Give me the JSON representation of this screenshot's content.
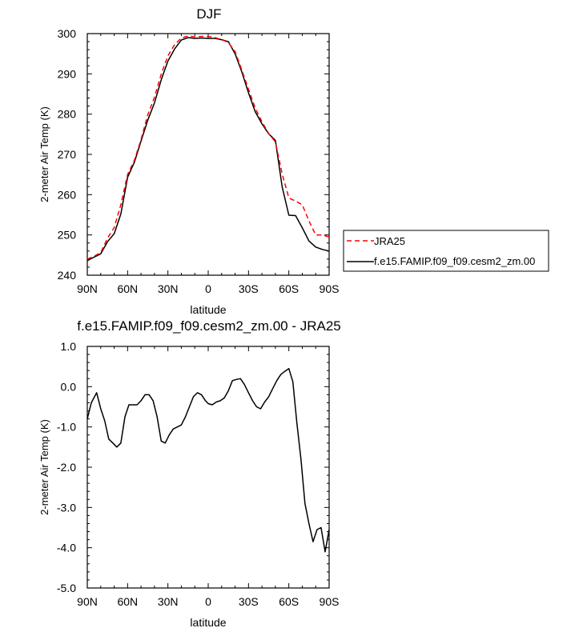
{
  "chart_data": [
    {
      "type": "line",
      "title": "DJF",
      "xlabel": "latitude",
      "ylabel": "2-meter Air Temp (K)",
      "xticks": [
        "90N",
        "60N",
        "30N",
        "0",
        "30S",
        "60S",
        "90S"
      ],
      "yticks": [
        "240",
        "250",
        "260",
        "270",
        "280",
        "290",
        "300"
      ],
      "xlim": [
        90,
        -90
      ],
      "ylim": [
        240,
        300
      ],
      "legend": {
        "placement": "right",
        "entries": [
          "JRA25",
          "f.e15.FAMIP.f09_f09.cesm2_zm.00"
        ]
      },
      "series": [
        {
          "name": "JRA25",
          "style": "dashed",
          "color": "#ff0000",
          "x": [
            90,
            85,
            80,
            75,
            70,
            65,
            60,
            55,
            50,
            45,
            40,
            35,
            30,
            25,
            20,
            15,
            10,
            5,
            0,
            -5,
            -10,
            -15,
            -20,
            -25,
            -30,
            -35,
            -40,
            -45,
            -50,
            -55,
            -60,
            -65,
            -70,
            -75,
            -80,
            -85,
            -90
          ],
          "y": [
            244.0,
            244.7,
            245.6,
            249.2,
            251.8,
            257.5,
            265.0,
            268.5,
            273.7,
            279.8,
            284.2,
            289.9,
            294.5,
            297.3,
            298.9,
            299.4,
            299.2,
            299.3,
            299.3,
            299.0,
            298.5,
            297.8,
            295.5,
            291.0,
            286.2,
            281.5,
            278.1,
            275.2,
            273.1,
            265.2,
            259.2,
            258.4,
            257.5,
            253.5,
            250.0,
            250.0,
            249.5
          ]
        },
        {
          "name": "f.e15.FAMIP.f09_f09.cesm2_zm.00",
          "style": "solid",
          "color": "#000000",
          "x": [
            90,
            85,
            80,
            75,
            70,
            65,
            60,
            55,
            50,
            45,
            40,
            35,
            30,
            25,
            20,
            15,
            10,
            5,
            0,
            -5,
            -10,
            -15,
            -20,
            -25,
            -30,
            -35,
            -40,
            -45,
            -50,
            -55,
            -60,
            -65,
            -70,
            -75,
            -80,
            -85,
            -90
          ],
          "y": [
            243.6,
            244.5,
            245.3,
            248.3,
            250.3,
            255.2,
            264.3,
            268.0,
            273.3,
            278.5,
            282.8,
            288.5,
            293.2,
            296.2,
            298.4,
            299.0,
            298.8,
            298.9,
            298.8,
            298.8,
            298.5,
            298.0,
            295.0,
            290.5,
            285.3,
            280.6,
            277.6,
            275.1,
            273.5,
            262.0,
            254.9,
            254.8,
            251.8,
            248.5,
            247.0,
            246.4,
            246.0
          ]
        }
      ]
    },
    {
      "type": "line",
      "title": "f.e15.FAMIP.f09_f09.cesm2_zm.00 - JRA25",
      "xlabel": "latitude",
      "ylabel": "2-meter Air Temp (K)",
      "xticks": [
        "90N",
        "60N",
        "30N",
        "0",
        "30S",
        "60S",
        "90S"
      ],
      "yticks": [
        "1.0",
        "0.0",
        "-1.0",
        "-2.0",
        "-3.0",
        "-4.0",
        "-5.0"
      ],
      "xlim": [
        90,
        -90
      ],
      "ylim": [
        -5,
        1
      ],
      "series": [
        {
          "style": "solid",
          "color": "#000000",
          "x": [
            90,
            87,
            83,
            80,
            77,
            74,
            71,
            68,
            65,
            62,
            59,
            56,
            53,
            50,
            47,
            44,
            41,
            38,
            35,
            32,
            29,
            26,
            23,
            20,
            17,
            14,
            11,
            8,
            5,
            2,
            0,
            -3,
            -6,
            -9,
            -12,
            -15,
            -18,
            -21,
            -24,
            -27,
            -30,
            -33,
            -36,
            -39,
            -42,
            -45,
            -48,
            -51,
            -54,
            -57,
            -60,
            -63,
            -66,
            -69,
            -72,
            -75,
            -78,
            -81,
            -84,
            -87,
            -90
          ],
          "y": [
            -0.8,
            -0.4,
            -0.15,
            -0.55,
            -0.85,
            -1.3,
            -1.4,
            -1.5,
            -1.4,
            -0.75,
            -0.45,
            -0.45,
            -0.45,
            -0.35,
            -0.2,
            -0.2,
            -0.35,
            -0.75,
            -1.35,
            -1.4,
            -1.2,
            -1.05,
            -1.0,
            -0.95,
            -0.75,
            -0.5,
            -0.25,
            -0.15,
            -0.2,
            -0.35,
            -0.42,
            -0.45,
            -0.38,
            -0.35,
            -0.28,
            -0.1,
            0.15,
            0.18,
            0.2,
            0.05,
            -0.15,
            -0.35,
            -0.5,
            -0.55,
            -0.38,
            -0.25,
            -0.05,
            0.15,
            0.3,
            0.38,
            0.45,
            0.12,
            -0.9,
            -1.8,
            -2.9,
            -3.4,
            -3.85,
            -3.55,
            -3.5,
            -4.1,
            -3.55
          ]
        }
      ]
    }
  ]
}
